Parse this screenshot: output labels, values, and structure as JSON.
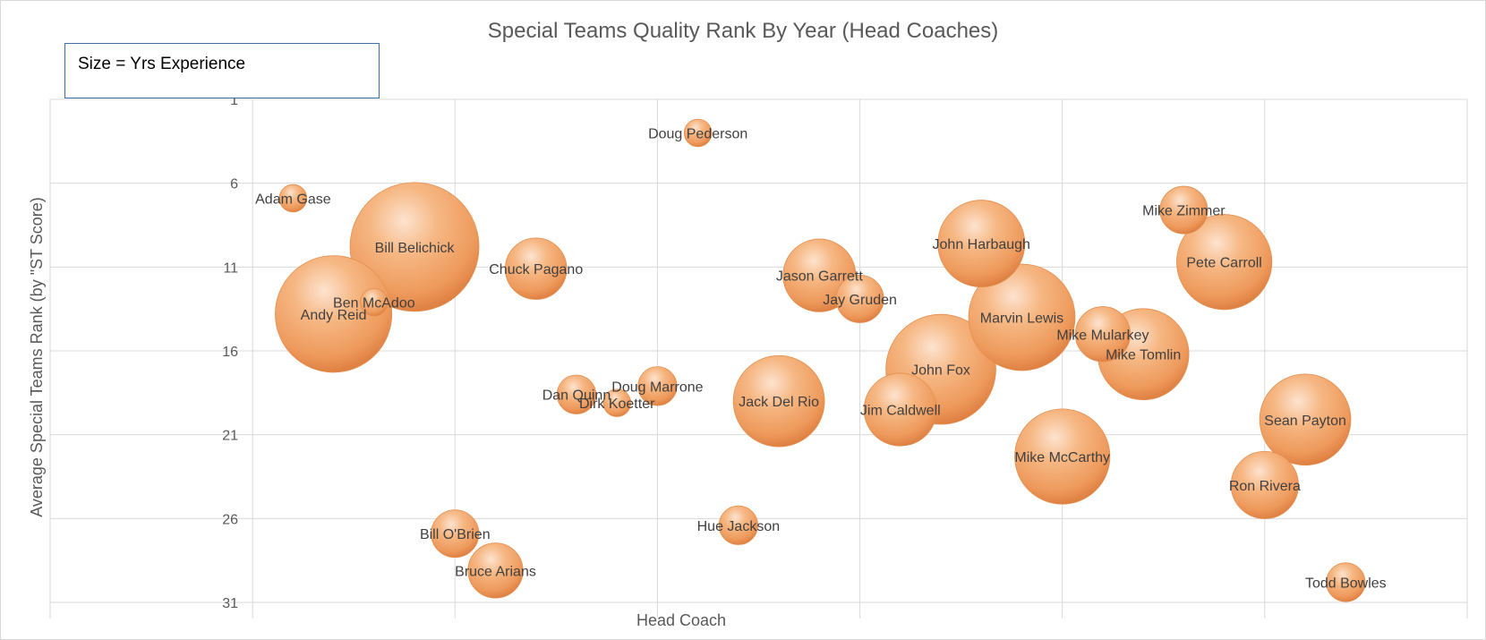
{
  "chart_data": {
    "type": "bubble",
    "title": "Special Teams Quality Rank By Year (Head Coaches)",
    "xlabel": "Head Coach",
    "ylabel": "Average Special Teams Rank (by \"ST Score)",
    "ylim": [
      1,
      31
    ],
    "yticks": [
      1,
      6,
      11,
      16,
      21,
      26,
      31
    ],
    "y_reversed": true,
    "xlim": [
      0,
      35
    ],
    "grid": true,
    "size_note": "Size = Yrs Experience",
    "bubble_color": "#f0a26a",
    "points": [
      {
        "name": "Adam Gase",
        "x": 6,
        "y": 6.9,
        "size": 1
      },
      {
        "name": "Andy Reid",
        "x": 7,
        "y": 13.8,
        "size": 18
      },
      {
        "name": "Ben McAdoo",
        "x": 8,
        "y": 13.1,
        "size": 1
      },
      {
        "name": "Bill Belichick",
        "x": 9,
        "y": 9.8,
        "size": 22
      },
      {
        "name": "Bill O'Brien",
        "x": 10,
        "y": 26.9,
        "size": 3
      },
      {
        "name": "Bruce Arians",
        "x": 11,
        "y": 29.1,
        "size": 4
      },
      {
        "name": "Chuck Pagano",
        "x": 12,
        "y": 11.1,
        "size": 5
      },
      {
        "name": "Dan Quinn",
        "x": 13,
        "y": 18.6,
        "size": 2
      },
      {
        "name": "Dirk Koetter",
        "x": 14,
        "y": 19.1,
        "size": 1
      },
      {
        "name": "Doug Marrone",
        "x": 15,
        "y": 18.1,
        "size": 2
      },
      {
        "name": "Doug Pederson",
        "x": 16,
        "y": 3.0,
        "size": 1
      },
      {
        "name": "Hue Jackson",
        "x": 17,
        "y": 26.4,
        "size": 2
      },
      {
        "name": "Jack Del Rio",
        "x": 18,
        "y": 19.0,
        "size": 11
      },
      {
        "name": "Jason Garrett",
        "x": 19,
        "y": 11.5,
        "size": 7
      },
      {
        "name": "Jay Gruden",
        "x": 20,
        "y": 12.9,
        "size": 3
      },
      {
        "name": "Jim Caldwell",
        "x": 21,
        "y": 19.5,
        "size": 7
      },
      {
        "name": "John Fox",
        "x": 22,
        "y": 17.1,
        "size": 16
      },
      {
        "name": "John Harbaugh",
        "x": 23,
        "y": 9.6,
        "size": 10
      },
      {
        "name": "Marvin Lewis",
        "x": 24,
        "y": 14.0,
        "size": 15
      },
      {
        "name": "Mike McCarthy",
        "x": 25,
        "y": 22.3,
        "size": 12
      },
      {
        "name": "Mike Mularkey",
        "x": 26,
        "y": 15.0,
        "size": 4
      },
      {
        "name": "Mike Tomlin",
        "x": 27,
        "y": 16.2,
        "size": 11
      },
      {
        "name": "Mike Zimmer",
        "x": 28,
        "y": 7.6,
        "size": 3
      },
      {
        "name": "Pete Carroll",
        "x": 29,
        "y": 10.7,
        "size": 12
      },
      {
        "name": "Ron Rivera",
        "x": 30,
        "y": 24.0,
        "size": 6
      },
      {
        "name": "Sean Payton",
        "x": 31,
        "y": 20.1,
        "size": 11
      },
      {
        "name": "Todd Bowles",
        "x": 32,
        "y": 29.8,
        "size": 2
      }
    ]
  }
}
